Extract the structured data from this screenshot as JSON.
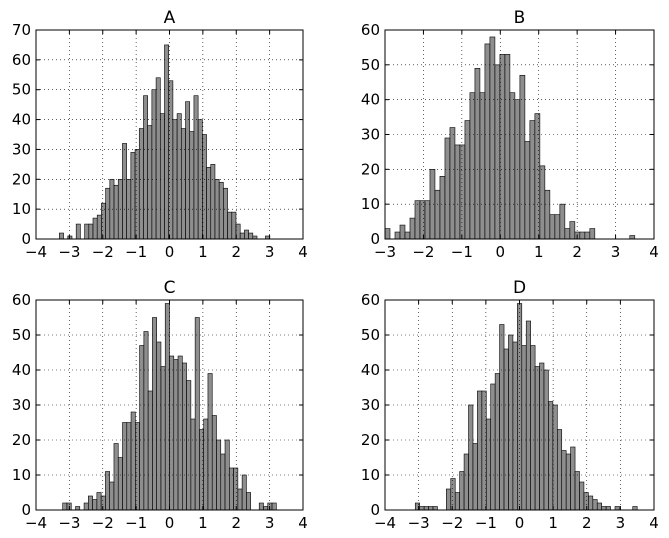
{
  "chart_data": [
    {
      "type": "histogram",
      "title": "A",
      "color": "#7a7a7a",
      "grid": true,
      "bins": [
        -3.3,
        -3.174,
        -3.048,
        -2.922,
        -2.796,
        -2.67,
        -2.544,
        -2.418,
        -2.292,
        -2.166,
        -2.04,
        -1.914,
        -1.788,
        -1.662,
        -1.536,
        -1.41,
        -1.284,
        -1.158,
        -1.032,
        -0.906,
        -0.78,
        -0.654,
        -0.528,
        -0.402,
        -0.276,
        -0.15,
        -0.024,
        0.102,
        0.228,
        0.354,
        0.48,
        0.606,
        0.732,
        0.858,
        0.984,
        1.11,
        1.236,
        1.362,
        1.488,
        1.614,
        1.74,
        1.866,
        1.992,
        2.118,
        2.244,
        2.37,
        2.496,
        2.622,
        2.748,
        2.874,
        3.0
      ],
      "values": [
        2,
        0,
        1,
        0,
        5,
        0,
        5,
        5,
        7,
        8,
        12,
        17,
        20,
        18,
        20,
        32,
        20,
        29,
        30,
        37,
        48,
        38,
        50,
        54,
        42,
        65,
        53,
        40,
        42,
        37,
        46,
        36,
        48,
        40,
        35,
        24,
        25,
        20,
        19,
        17,
        9,
        9,
        5,
        2,
        3,
        2,
        1,
        0,
        0,
        1
      ],
      "xlim": [
        -4,
        4
      ],
      "xticks": [
        {
          "value": -4,
          "label": "−4"
        },
        {
          "value": -3,
          "label": "−3"
        },
        {
          "value": -2,
          "label": "−2"
        },
        {
          "value": -1,
          "label": "−1"
        },
        0,
        1,
        2,
        3,
        4
      ],
      "ylim": [
        0,
        70
      ],
      "yticks": [
        0,
        10,
        20,
        30,
        40,
        50,
        60,
        70
      ]
    },
    {
      "type": "histogram",
      "title": "B",
      "color": "#7a7a7a",
      "grid": true,
      "bins": [
        -3,
        -2.87,
        -2.74,
        -2.61,
        -2.48,
        -2.35,
        -2.22,
        -2.09,
        -1.96,
        -1.83,
        -1.7,
        -1.57,
        -1.44,
        -1.31,
        -1.18,
        -1.05,
        -0.92,
        -0.79,
        -0.66,
        -0.53,
        -0.4,
        -0.27,
        -0.14,
        -0.01,
        0.12,
        0.25,
        0.38,
        0.51,
        0.64,
        0.77,
        0.9,
        1.03,
        1.16,
        1.29,
        1.42,
        1.55,
        1.68,
        1.81,
        1.94,
        2.07,
        2.2,
        2.33,
        2.46,
        2.59,
        2.72,
        2.85,
        2.98,
        3.11,
        3.24,
        3.37,
        3.5
      ],
      "values": [
        3,
        0,
        2,
        4,
        2,
        6,
        11,
        11,
        11,
        20,
        14,
        18,
        29,
        32,
        27,
        27,
        34,
        42,
        49,
        42,
        56,
        58,
        50,
        53,
        53,
        42,
        40,
        47,
        28,
        34,
        36,
        21,
        14,
        7,
        7,
        10,
        3,
        5,
        2,
        2,
        2,
        3,
        0,
        0,
        0,
        0,
        0,
        0,
        0,
        1
      ],
      "xlim": [
        -3,
        4
      ],
      "xticks": [
        {
          "value": -3,
          "label": "−3"
        },
        {
          "value": -2,
          "label": "−2"
        },
        {
          "value": -1,
          "label": "−1"
        },
        0,
        1,
        2,
        3,
        4
      ],
      "ylim": [
        0,
        60
      ],
      "yticks": [
        0,
        10,
        20,
        30,
        40,
        50,
        60
      ]
    },
    {
      "type": "histogram",
      "title": "C",
      "color": "#7a7a7a",
      "grid": true,
      "bins": [
        -3.2,
        -3.072,
        -2.944,
        -2.816,
        -2.688,
        -2.56,
        -2.432,
        -2.304,
        -2.176,
        -2.048,
        -1.92,
        -1.792,
        -1.664,
        -1.536,
        -1.408,
        -1.28,
        -1.152,
        -1.024,
        -0.896,
        -0.768,
        -0.64,
        -0.512,
        -0.384,
        -0.256,
        -0.128,
        0,
        0.128,
        0.256,
        0.384,
        0.512,
        0.64,
        0.768,
        0.896,
        1.024,
        1.152,
        1.28,
        1.408,
        1.536,
        1.664,
        1.792,
        1.92,
        2.048,
        2.176,
        2.304,
        2.432,
        2.56,
        2.688,
        2.816,
        2.944,
        3.072,
        3.2
      ],
      "values": [
        2,
        2,
        0,
        1,
        0,
        2,
        4,
        3,
        5,
        4,
        11,
        8,
        19,
        15,
        25,
        25,
        28,
        25,
        47,
        51,
        34,
        55,
        48,
        41,
        59,
        44,
        43,
        44,
        42,
        37,
        26,
        55,
        23,
        26,
        39,
        27,
        20,
        16,
        20,
        12,
        12,
        6,
        10,
        5,
        0,
        0,
        2,
        1,
        2,
        2
      ],
      "xlim": [
        -4,
        4
      ],
      "xticks": [
        {
          "value": -4,
          "label": "−4"
        },
        {
          "value": -3,
          "label": "−3"
        },
        {
          "value": -2,
          "label": "−2"
        },
        {
          "value": -1,
          "label": "−1"
        },
        0,
        1,
        2,
        3,
        4
      ],
      "ylim": [
        0,
        60
      ],
      "yticks": [
        0,
        10,
        20,
        30,
        40,
        50,
        60
      ]
    },
    {
      "type": "histogram",
      "title": "D",
      "color": "#7a7a7a",
      "grid": true,
      "bins": [
        -3.1,
        -2.968,
        -2.836,
        -2.704,
        -2.572,
        -2.44,
        -2.308,
        -2.176,
        -2.044,
        -1.912,
        -1.78,
        -1.648,
        -1.516,
        -1.384,
        -1.252,
        -1.12,
        -0.988,
        -0.856,
        -0.724,
        -0.592,
        -0.46,
        -0.328,
        -0.196,
        -0.064,
        0.068,
        0.2,
        0.332,
        0.464,
        0.596,
        0.728,
        0.86,
        0.992,
        1.124,
        1.256,
        1.388,
        1.52,
        1.652,
        1.784,
        1.916,
        2.048,
        2.18,
        2.312,
        2.444,
        2.576,
        2.708,
        2.84,
        2.972,
        3.104,
        3.236,
        3.368,
        3.5
      ],
      "values": [
        2,
        1,
        1,
        1,
        1,
        0,
        0,
        6,
        9,
        5,
        11,
        16,
        30,
        19,
        34,
        34,
        26,
        36,
        39,
        53,
        46,
        50,
        48,
        59,
        47,
        54,
        47,
        41,
        42,
        40,
        31,
        30,
        23,
        17,
        16,
        18,
        11,
        8,
        5,
        4,
        3,
        2,
        1,
        1,
        0,
        1,
        0,
        0,
        0,
        1
      ],
      "xlim": [
        -4,
        4
      ],
      "xticks": [
        {
          "value": -4,
          "label": "−4"
        },
        {
          "value": -3,
          "label": "−3"
        },
        {
          "value": -2,
          "label": "−2"
        },
        {
          "value": -1,
          "label": "−1"
        },
        0,
        1,
        2,
        3,
        4
      ],
      "ylim": [
        0,
        60
      ],
      "yticks": [
        0,
        10,
        20,
        30,
        40,
        50,
        60
      ]
    }
  ]
}
